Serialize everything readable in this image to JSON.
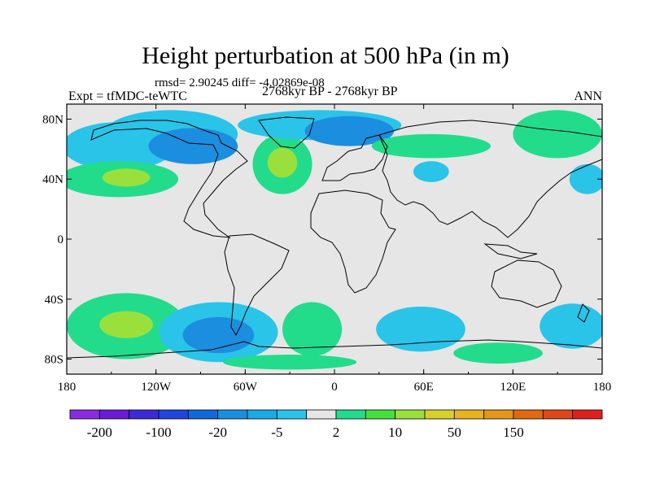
{
  "chart_data": {
    "type": "heatmap",
    "title": "Height perturbation at 500 hPa (in m)",
    "stats_text": "rmsd= 2.90245 diff= -4.02869e-08",
    "left_label": "Expt = tfMDC-teWTC",
    "center_label": "2768kyr BP - 2768kyr BP",
    "right_label": "ANN",
    "x_ticks": [
      {
        "value": -180,
        "label": "180"
      },
      {
        "value": -120,
        "label": "120W"
      },
      {
        "value": -60,
        "label": "60W"
      },
      {
        "value": 0,
        "label": "0"
      },
      {
        "value": 60,
        "label": "60E"
      },
      {
        "value": 120,
        "label": "120E"
      },
      {
        "value": 180,
        "label": "180"
      }
    ],
    "y_ticks": [
      {
        "value": 80,
        "label": "80N"
      },
      {
        "value": 40,
        "label": "40N"
      },
      {
        "value": 0,
        "label": "0"
      },
      {
        "value": -40,
        "label": "40S"
      },
      {
        "value": -80,
        "label": "80S"
      }
    ],
    "xlim": [
      -180,
      180
    ],
    "ylim": [
      -90,
      90
    ],
    "colorbar": {
      "colors": [
        "#8a2be2",
        "#6a1bd8",
        "#3c2ad8",
        "#1f46e0",
        "#1068dc",
        "#1c8ee0",
        "#19abe6",
        "#2ac4e8",
        "#e6e6e6",
        "#22dc8c",
        "#46e03c",
        "#9ae03c",
        "#d6d02a",
        "#e6b41e",
        "#e6961a",
        "#e06a12",
        "#e04618",
        "#e01e1e"
      ],
      "tick_labels": [
        "-200",
        "-100",
        "-20",
        "-5",
        "2",
        "10",
        "50",
        "150"
      ]
    },
    "anomaly_regions": [
      {
        "lon": -145,
        "lat": 62,
        "rlon": 38,
        "rlat": 16,
        "level": "-5"
      },
      {
        "lon": -110,
        "lat": 70,
        "rlon": 45,
        "rlat": 16,
        "level": "-5"
      },
      {
        "lon": -95,
        "lat": 62,
        "rlon": 30,
        "rlat": 12,
        "level": "-20"
      },
      {
        "lon": -145,
        "lat": 40,
        "rlon": 40,
        "rlat": 12,
        "level": "2"
      },
      {
        "lon": -140,
        "lat": 41,
        "rlon": 16,
        "rlat": 6,
        "level": "10"
      },
      {
        "lon": -35,
        "lat": 50,
        "rlon": 20,
        "rlat": 20,
        "level": "2"
      },
      {
        "lon": -35,
        "lat": 51,
        "rlon": 10,
        "rlat": 10,
        "level": "10"
      },
      {
        "lon": -10,
        "lat": 76,
        "rlon": 55,
        "rlat": 10,
        "level": "-5"
      },
      {
        "lon": 10,
        "lat": 72,
        "rlon": 30,
        "rlat": 10,
        "level": "-20"
      },
      {
        "lon": 65,
        "lat": 62,
        "rlon": 40,
        "rlat": 8,
        "level": "2"
      },
      {
        "lon": 65,
        "lat": 45,
        "rlon": 12,
        "rlat": 7,
        "level": "-5"
      },
      {
        "lon": 150,
        "lat": 70,
        "rlon": 30,
        "rlat": 16,
        "level": "2"
      },
      {
        "lon": 170,
        "lat": 40,
        "rlon": 12,
        "rlat": 10,
        "level": "-5"
      },
      {
        "lon": -140,
        "lat": -58,
        "rlon": 40,
        "rlat": 22,
        "level": "2"
      },
      {
        "lon": -140,
        "lat": -57,
        "rlon": 18,
        "rlat": 9,
        "level": "10"
      },
      {
        "lon": -78,
        "lat": -62,
        "rlon": 40,
        "rlat": 20,
        "level": "-5"
      },
      {
        "lon": -78,
        "lat": -64,
        "rlon": 24,
        "rlat": 12,
        "level": "-20"
      },
      {
        "lon": -15,
        "lat": -60,
        "rlon": 20,
        "rlat": 18,
        "level": "2"
      },
      {
        "lon": -30,
        "lat": -82,
        "rlon": 45,
        "rlat": 5,
        "level": "2"
      },
      {
        "lon": 58,
        "lat": -60,
        "rlon": 30,
        "rlat": 15,
        "level": "-5"
      },
      {
        "lon": 160,
        "lat": -58,
        "rlon": 22,
        "rlat": 15,
        "level": "-5"
      },
      {
        "lon": 110,
        "lat": -76,
        "rlon": 30,
        "rlat": 7,
        "level": "2"
      }
    ]
  }
}
